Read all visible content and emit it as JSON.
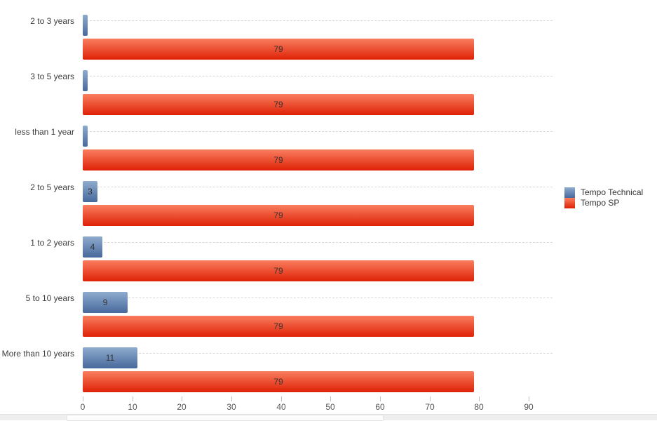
{
  "chart_data": {
    "type": "bar",
    "orientation": "horizontal",
    "title": "",
    "xlabel": "",
    "ylabel": "",
    "categories": [
      "2 to 3 years",
      "3 to 5 years",
      "less than 1 year",
      "2 to 5 years",
      "1 to 2 years",
      "5 to 10 years",
      "More than 10 years"
    ],
    "series": [
      {
        "name": "Tempo Technical",
        "values": [
          1,
          1,
          1,
          3,
          4,
          9,
          11
        ],
        "bar_labels": [
          "",
          "",
          "",
          "3",
          "4",
          "9",
          "11"
        ],
        "color_top": "#8fabce",
        "color_bottom": "#47699b"
      },
      {
        "name": "Tempo SP",
        "values": [
          79,
          79,
          79,
          79,
          79,
          79,
          79
        ],
        "bar_labels": [
          "79",
          "79",
          "79",
          "79",
          "79",
          "79",
          "79"
        ],
        "color_top": "#f97e5f",
        "color_bottom": "#df2106"
      }
    ],
    "x_ticks": [
      0,
      10,
      20,
      30,
      40,
      50,
      60,
      70,
      80,
      90
    ],
    "xlim": [
      0,
      95
    ],
    "grid": "horizontal-dashed-per-category",
    "legend": {
      "position": "right",
      "entries": [
        "Tempo Technical",
        "Tempo SP"
      ]
    }
  },
  "scrollbar": {
    "visible": true
  }
}
